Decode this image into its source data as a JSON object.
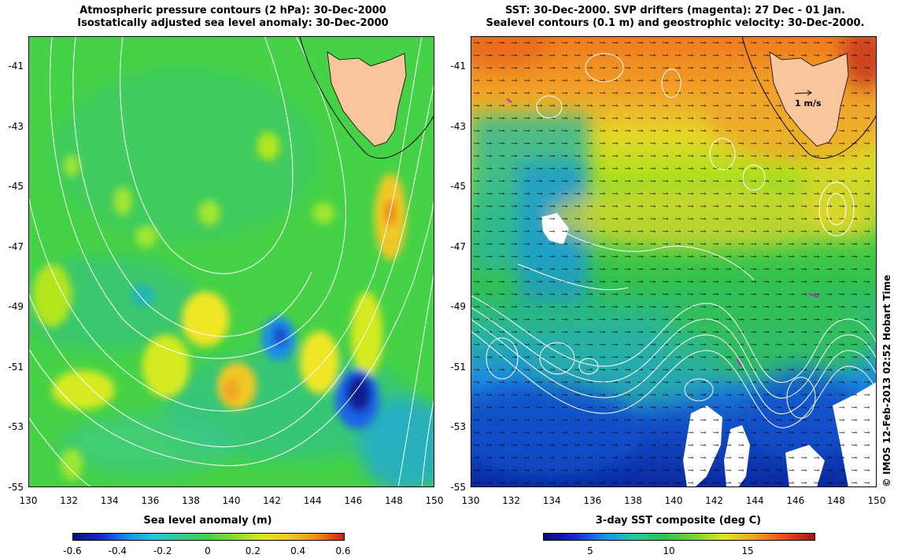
{
  "left_panel": {
    "title_line1": "Atmospheric pressure contours (2 hPa): 30-Dec-2000",
    "title_line2": "Isostatically adjusted sea level anomaly: 30-Dec-2000",
    "colorbar_title": "Sea level anomaly (m)",
    "colorbar_labels": [
      "-0.6",
      "-0.4",
      "-0.2",
      "0",
      "0.2",
      "0.4",
      "0.6"
    ]
  },
  "right_panel": {
    "title_line1": "SST: 30-Dec-2000. SVP drifters (magenta): 27 Dec - 01 Jan.",
    "title_line2": "Sealevel contours (0.1 m) and geostrophic velocity: 30-Dec-2000.",
    "colorbar_title": "3-day SST composite (deg C)",
    "colorbar_labels": [
      "5",
      "10",
      "15"
    ],
    "velocity_scale_label": "1 m/s"
  },
  "axes": {
    "lat_ticks": [
      "-41",
      "-43",
      "-45",
      "-47",
      "-49",
      "-51",
      "-53",
      "-55"
    ],
    "lon_ticks": [
      "130",
      "132",
      "134",
      "136",
      "138",
      "140",
      "142",
      "144",
      "146",
      "148",
      "150"
    ]
  },
  "credit": "© IMOS 12-Feb-2013 02:52 Hobart Time",
  "colors": {
    "land": "#f9c59a",
    "sst_warm": "#f08a1e",
    "sst_mid": "#3cc83c",
    "sst_cold": "#1428a0",
    "sla_background": "#46d246"
  }
}
